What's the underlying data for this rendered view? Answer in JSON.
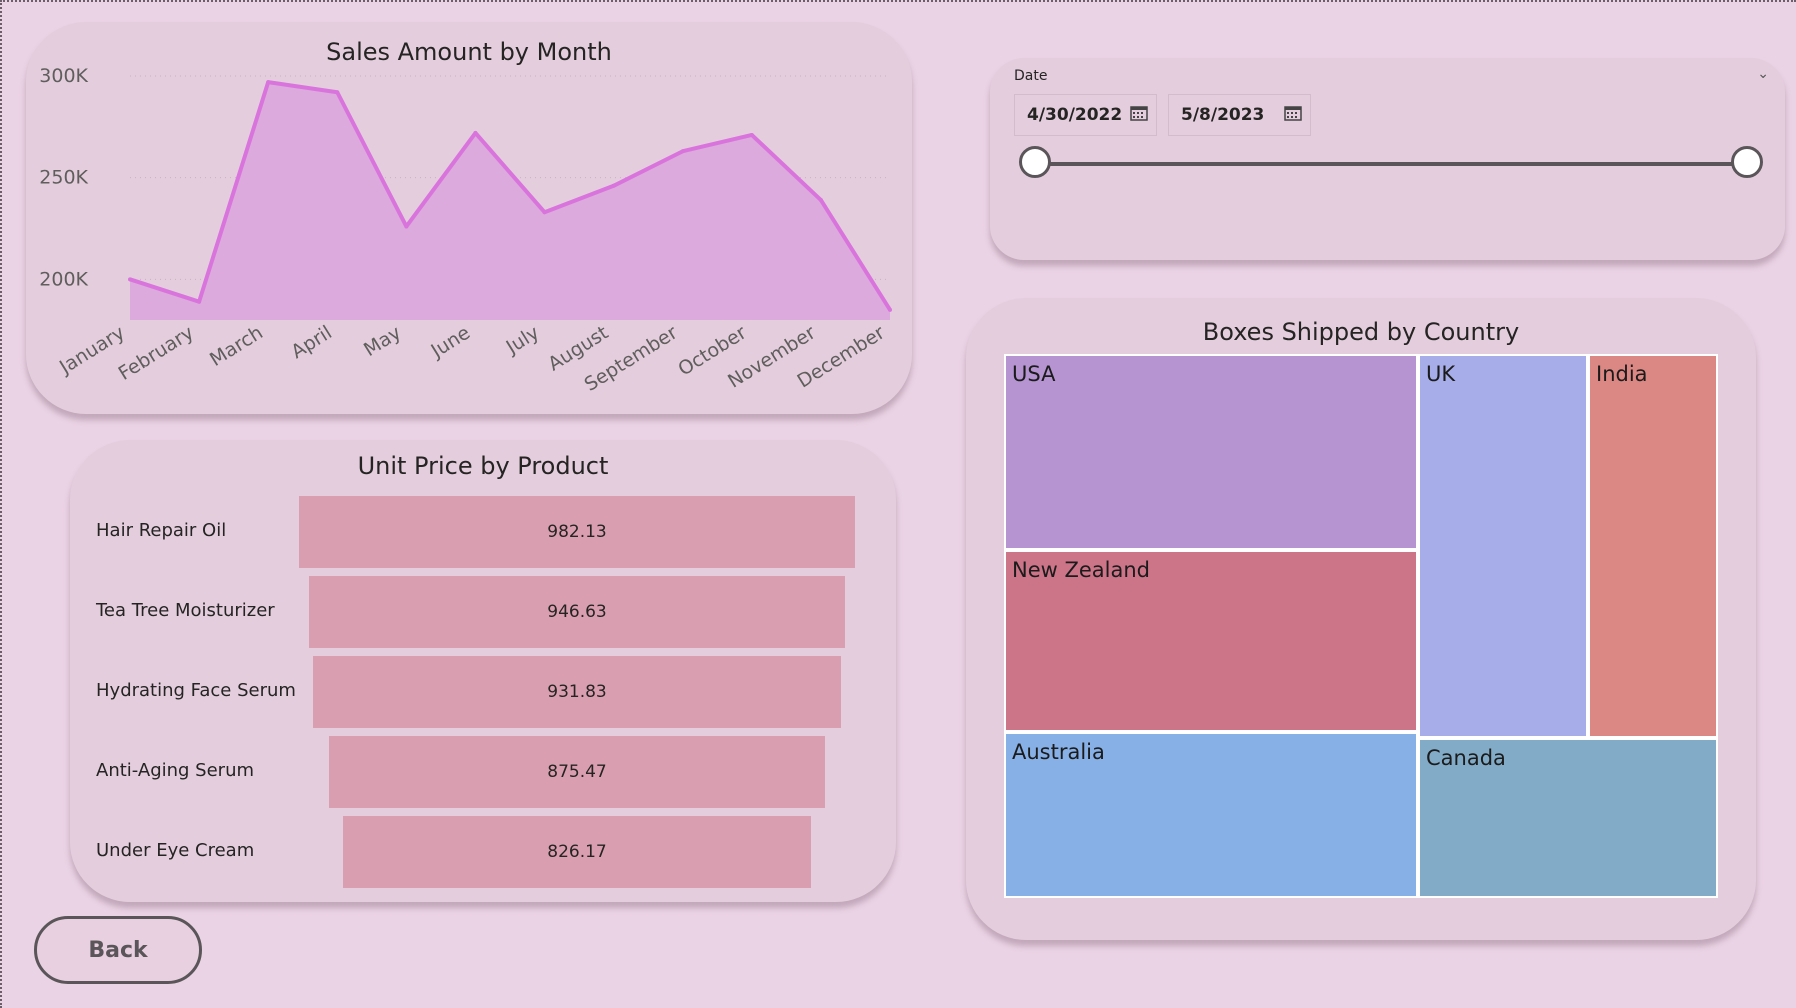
{
  "line_chart": {
    "title": "Sales Amount by Month",
    "chart_data": {
      "type": "area",
      "title": "Sales Amount by Month",
      "xlabel": "",
      "ylabel": "",
      "categories": [
        "January",
        "February",
        "March",
        "April",
        "May",
        "June",
        "July",
        "August",
        "September",
        "October",
        "November",
        "December"
      ],
      "values": [
        200000,
        189000,
        297000,
        292000,
        226000,
        272000,
        233000,
        246000,
        263000,
        271000,
        239000,
        185000
      ],
      "ylim": [
        180000,
        300000
      ],
      "yticks": [
        {
          "value": 300000,
          "label": "300K"
        },
        {
          "value": 250000,
          "label": "250K"
        },
        {
          "value": 200000,
          "label": "200K"
        }
      ],
      "grid": true,
      "colors": {
        "line": "#d974dd",
        "fill": "#dcaadd"
      }
    }
  },
  "date_slicer": {
    "header": "Date",
    "start_date": "4/30/2022",
    "end_date": "5/8/2023",
    "range_fraction": [
      0,
      1
    ]
  },
  "funnel": {
    "title": "Unit Price by Product",
    "chart_data": {
      "type": "bar",
      "title": "Unit Price by Product",
      "categories": [
        "Hair Repair Oil",
        "Tea Tree Moisturizer",
        "Hydrating Face Serum",
        "Anti-Aging Serum",
        "Under Eye Cream"
      ],
      "values": [
        982.13,
        946.63,
        931.83,
        875.47,
        826.17
      ],
      "value_labels": [
        "982.13",
        "946.63",
        "931.83",
        "875.47",
        "826.17"
      ],
      "colors": {
        "bar": "#da9eb1"
      }
    }
  },
  "treemap": {
    "title": "Boxes Shipped by Country",
    "cells": [
      {
        "label": "USA",
        "color": "#b594d1"
      },
      {
        "label": "New Zealand",
        "color": "#cc7488"
      },
      {
        "label": "Australia",
        "color": "#87b0e6"
      },
      {
        "label": "UK",
        "color": "#a7ade9"
      },
      {
        "label": "India",
        "color": "#db8783"
      },
      {
        "label": "Canada",
        "color": "#82abc7"
      }
    ]
  },
  "back_button": {
    "label": "Back"
  }
}
